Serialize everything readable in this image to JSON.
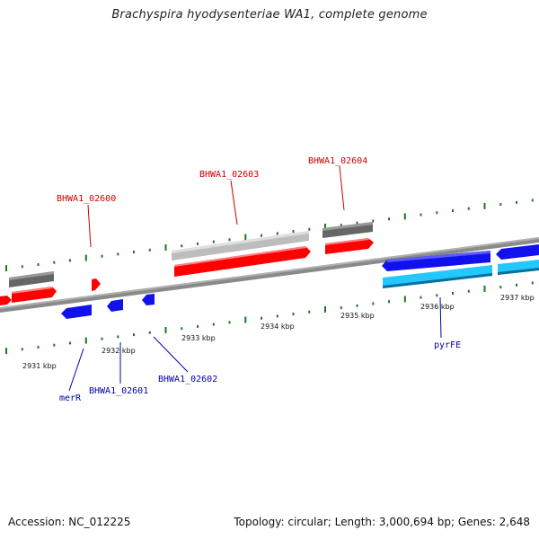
{
  "title": "Brachyspira hyodysenteriae WA1, complete genome",
  "footer": {
    "accession": "Accession: NC_012225",
    "summary": "Topology: circular; Length: 3,000,694 bp; Genes: 2,648"
  },
  "colors": {
    "backbone": "#8a8a8a",
    "forward_cds": "#ff0000",
    "forward_gene": "#666666",
    "forward_pseudo": "#bdbdbd",
    "reverse_cds": "#1111ee",
    "reverse_light": "#22c8ff",
    "tick": "#1a7a1a",
    "forward_label": "#cc0000",
    "reverse_label": "#0000aa"
  },
  "scale_labels": [
    "2931 kbp",
    "2932 kbp",
    "2933 kbp",
    "2934 kbp",
    "2935 kbp",
    "2936 kbp",
    "2937 kbp"
  ],
  "gene_labels": {
    "forward": [
      "BHWA1_02600",
      "BHWA1_02603",
      "BHWA1_02604"
    ],
    "reverse": [
      "merR",
      "BHWA1_02601",
      "BHWA1_02602",
      "pyrFE"
    ]
  }
}
